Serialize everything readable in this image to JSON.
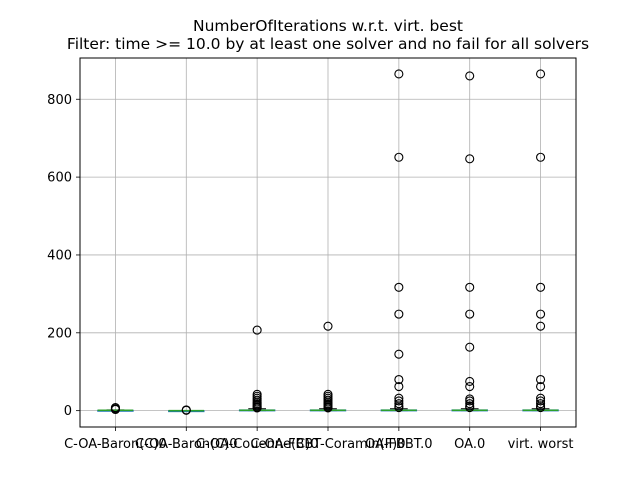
{
  "chart_data": {
    "type": "boxplot",
    "title": "NumberOfIterations w.r.t. virt. best",
    "subtitle": "Filter: time >= 10.0 by at least one solver and no fail for all solvers",
    "xlabel": "",
    "ylabel": "",
    "categories": [
      "C-OA-Baron(C)0",
      "C-OA-Baron(C)0",
      "C-OA-Couenne(C)0",
      "C-OA-FBBT-Coramin(F)0",
      "OA-FBBT.0",
      "OA.0",
      "virt. worst"
    ],
    "ylim": [
      -42,
      906
    ],
    "yticks": [
      0,
      200,
      400,
      600,
      800
    ],
    "grid": true,
    "box_color": "#1f77b4",
    "median_color": "#2ca02c",
    "whisker_color": "#1f77b4",
    "flier_color": "#000000",
    "series": [
      {
        "category": "C-OA-Baron(C)0",
        "median": 1,
        "q1": 0,
        "q3": 1,
        "whisker_low": 0,
        "whisker_high": 2,
        "outliers": [
          3,
          4,
          5,
          8
        ]
      },
      {
        "category": "C-OA-Baron(C)0",
        "median": 0,
        "q1": 0,
        "q3": 0,
        "whisker_low": 0,
        "whisker_high": 0,
        "outliers": [
          1,
          2
        ]
      },
      {
        "category": "C-OA-Couenne(C)0",
        "median": 1,
        "q1": 0,
        "q3": 2,
        "whisker_low": 0,
        "whisker_high": 5,
        "outliers": [
          7,
          9,
          12,
          15,
          18,
          22,
          27,
          32,
          37,
          42,
          207
        ]
      },
      {
        "category": "C-OA-FBBT-Coramin(F)0",
        "median": 1,
        "q1": 0,
        "q3": 2,
        "whisker_low": 0,
        "whisker_high": 5,
        "outliers": [
          7,
          9,
          12,
          15,
          18,
          22,
          27,
          32,
          37,
          42,
          217
        ]
      },
      {
        "category": "OA-FBBT.0",
        "median": 1,
        "q1": 0,
        "q3": 2,
        "whisker_low": 0,
        "whisker_high": 5,
        "outliers": [
          8,
          12,
          18,
          25,
          32,
          62,
          80,
          145,
          248,
          317,
          651,
          865
        ]
      },
      {
        "category": "OA.0",
        "median": 1,
        "q1": 0,
        "q3": 2,
        "whisker_low": 0,
        "whisker_high": 5,
        "outliers": [
          8,
          12,
          18,
          25,
          30,
          62,
          75,
          163,
          248,
          317,
          647,
          860
        ]
      },
      {
        "category": "virt. worst",
        "median": 1,
        "q1": 0,
        "q3": 2,
        "whisker_low": 0,
        "whisker_high": 5,
        "outliers": [
          8,
          12,
          18,
          25,
          32,
          62,
          80,
          217,
          248,
          317,
          651,
          865
        ]
      }
    ]
  }
}
